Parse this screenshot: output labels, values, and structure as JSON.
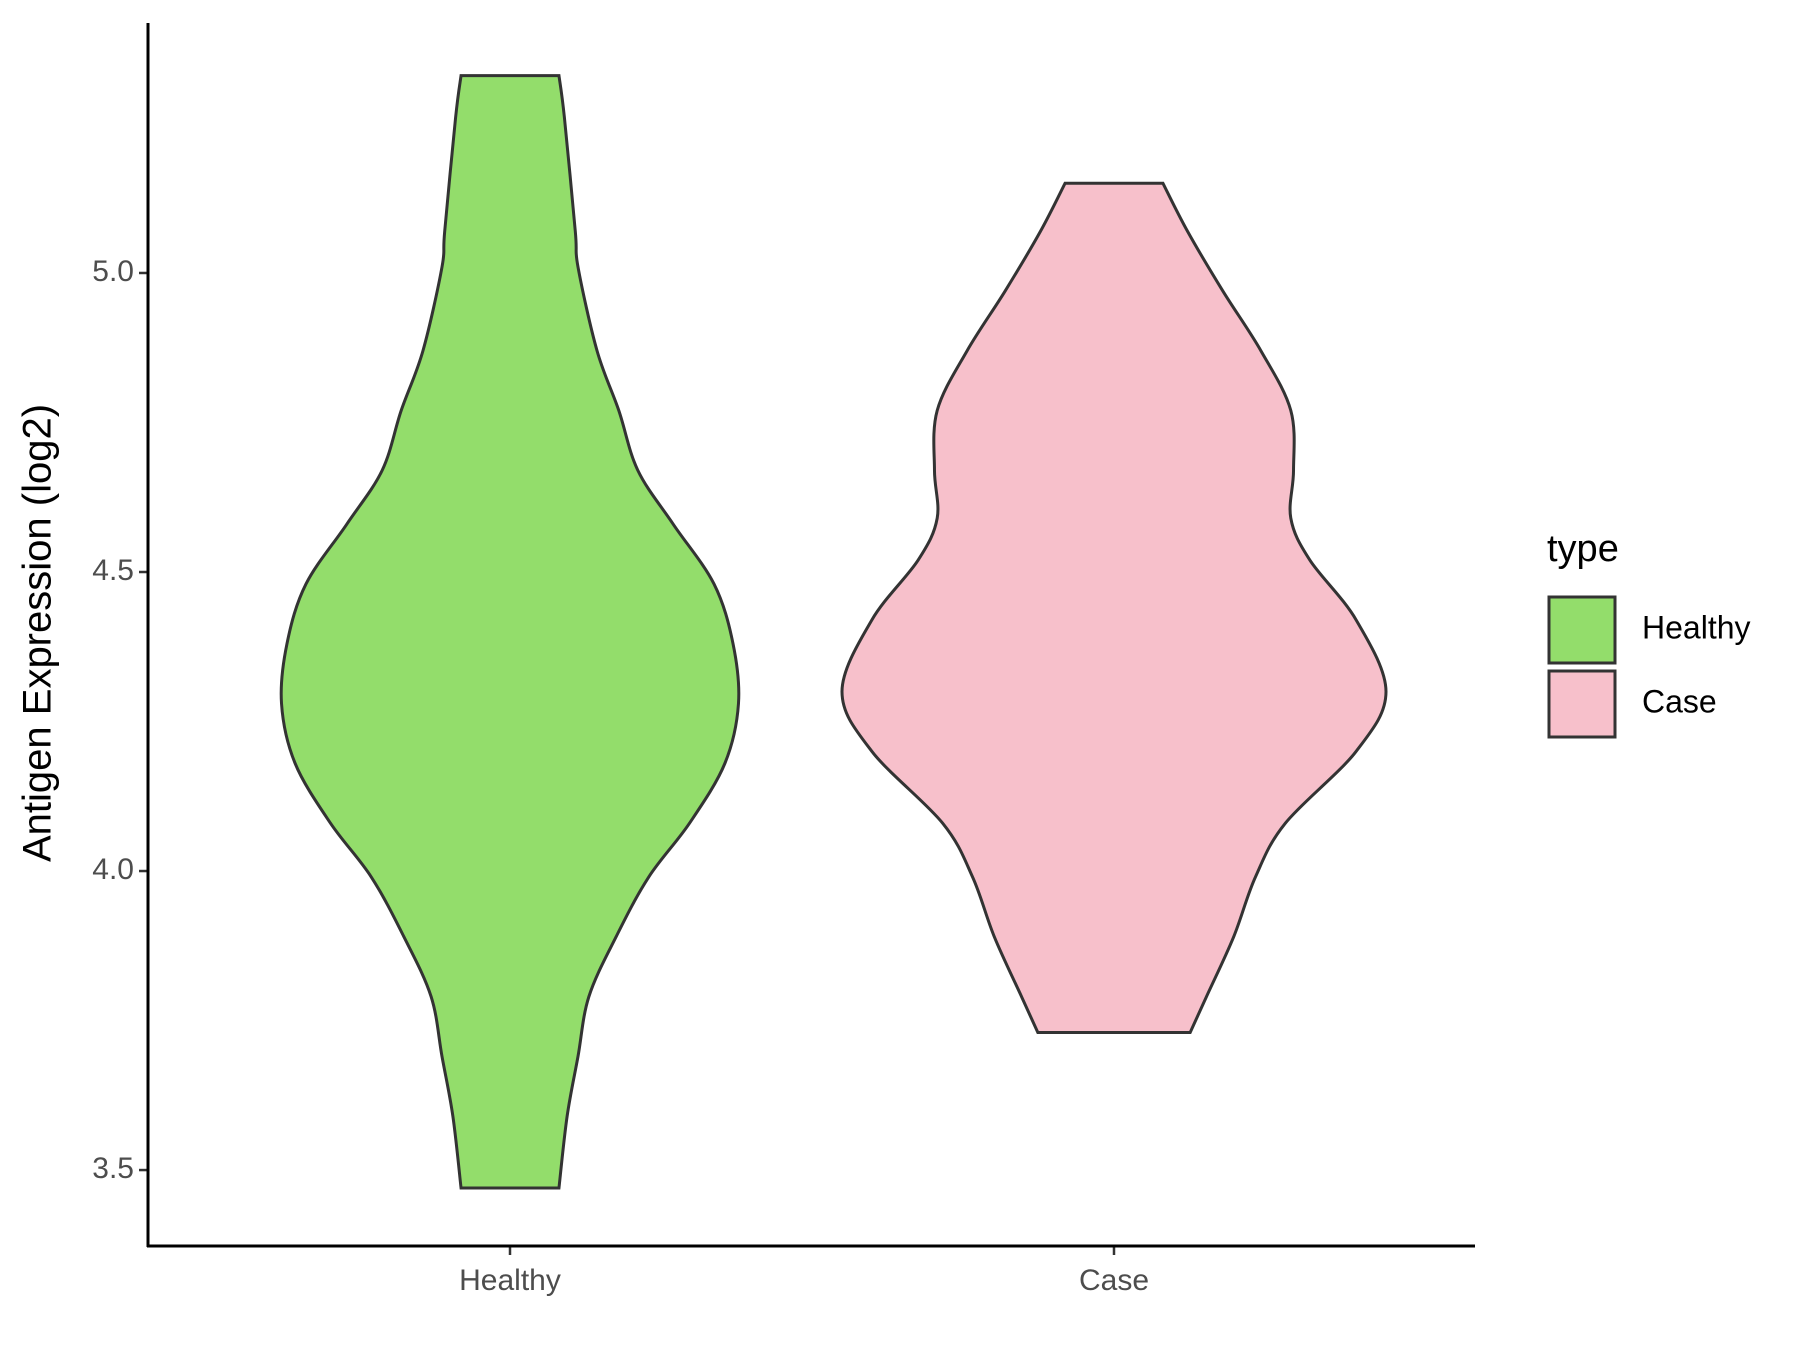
{
  "chart_data": {
    "type": "violin",
    "y_label": "Antigen Expression (log2)",
    "categories": [
      "Healthy",
      "Case"
    ],
    "legend_title": "type",
    "series": [
      {
        "name": "Healthy",
        "color": "#93dd6b",
        "y": [
          3.47,
          3.59,
          3.69,
          3.79,
          3.89,
          3.99,
          4.08,
          4.18,
          4.28,
          4.38,
          4.48,
          4.58,
          4.67,
          4.77,
          4.87,
          5.01,
          5.07,
          5.26,
          5.33
        ],
        "density": [
          0.18,
          0.21,
          0.25,
          0.29,
          0.39,
          0.51,
          0.66,
          0.79,
          0.84,
          0.82,
          0.75,
          0.6,
          0.47,
          0.4,
          0.32,
          0.25,
          0.24,
          0.2,
          0.18
        ]
      },
      {
        "name": "Case",
        "color": "#f7c0cb",
        "y": [
          3.73,
          3.79,
          3.89,
          3.99,
          4.08,
          4.2,
          4.3,
          4.42,
          4.52,
          4.59,
          4.67,
          4.77,
          4.87,
          4.97,
          5.07,
          5.15
        ],
        "density": [
          0.28,
          0.34,
          0.44,
          0.52,
          0.63,
          0.89,
          1,
          0.89,
          0.72,
          0.65,
          0.66,
          0.65,
          0.54,
          0.4,
          0.27,
          0.18
        ]
      }
    ],
    "ylim": [
      3.373,
      5.418
    ],
    "yticks": [
      3.5,
      {
        "value": 4,
        "label": "4.0"
      },
      4.5,
      {
        "value": 5,
        "label": "5.0"
      }
    ]
  }
}
